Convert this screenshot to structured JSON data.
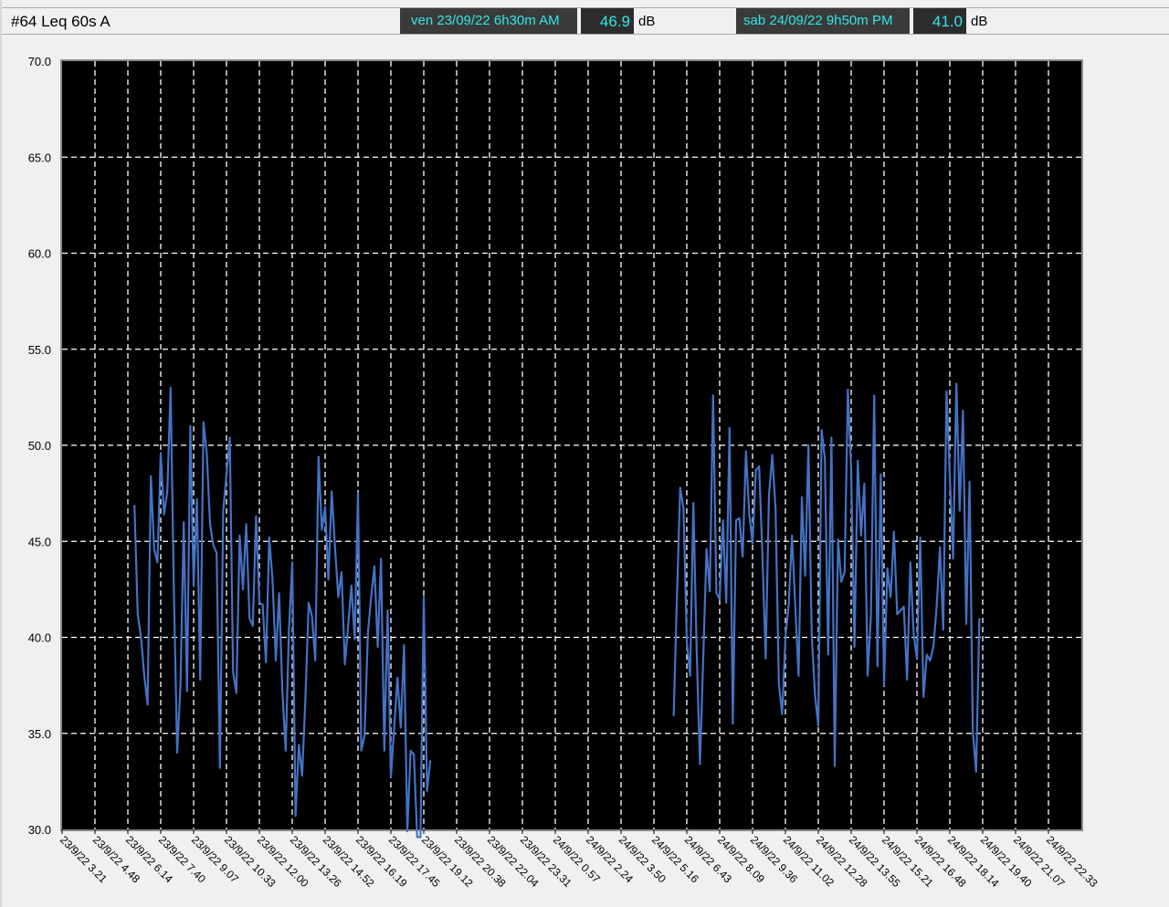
{
  "header": {
    "title": "#64 Leq 60s A",
    "cursor1": {
      "time": "ven 23/09/22 6h30m AM",
      "value": "46.9",
      "unit": "dB"
    },
    "cursor2": {
      "time": "sab 24/09/22 9h50m PM",
      "value": "41.0",
      "unit": "dB"
    }
  },
  "colors": {
    "plot_bg": "#000000",
    "line": "#4472c4",
    "grid": "#ffffff",
    "cursor_text": "#33e6e6",
    "window_bg": "#f0f0f0"
  },
  "chart_data": {
    "type": "line",
    "title": "",
    "xlabel": "",
    "ylabel": "",
    "ylim": [
      30,
      70
    ],
    "yticks": [
      "70.0",
      "65.0",
      "60.0",
      "55.0",
      "50.0",
      "45.0",
      "40.0",
      "35.0",
      "30.0"
    ],
    "ytick_values": [
      70,
      65,
      60,
      55,
      50,
      45,
      40,
      35,
      30
    ],
    "xticks": [
      "23/9/22 3.21",
      "23/9/22 4.48",
      "23/9/22 6.14",
      "23/9/22 7.40",
      "23/9/22 9.07",
      "23/9/22 10.33",
      "23/9/22 12.00",
      "23/9/22 13.26",
      "23/9/22 14.52",
      "23/9/22 16.19",
      "23/9/22 17.45",
      "23/9/22 19.12",
      "23/9/22 20.38",
      "23/9/22 22.04",
      "23/9/22 23.31",
      "24/9/22 0.57",
      "24/9/22 2.24",
      "24/9/22 3.50",
      "24/9/22 5.16",
      "24/9/22 6.43",
      "24/9/22 8.09",
      "24/9/22 9.36",
      "24/9/22 11.02",
      "24/9/22 12.28",
      "24/9/22 13.55",
      "24/9/22 15.21",
      "24/9/22 16.48",
      "24/9/22 18.14",
      "24/9/22 19.40",
      "24/9/22 21.07",
      "24/9/22 22.33"
    ],
    "grid": true,
    "legend": "none",
    "series": [
      {
        "segments": [
          [
            46.9,
            41.2,
            40.0,
            38.0,
            36.5,
            48.4,
            44.6,
            43.9,
            49.6,
            46.4,
            47.6,
            53.0,
            42.4,
            34.0,
            37.5,
            46.0,
            37.2,
            51.0,
            42.7,
            47.2,
            37.8,
            51.2,
            49.6,
            45.9,
            44.8,
            44.4,
            33.2,
            46.6,
            48.5,
            50.4,
            38.2,
            37.1,
            45.3,
            42.5,
            45.9,
            41.0,
            40.6,
            46.3,
            41.8,
            41.7,
            38.7,
            45.2,
            43.0,
            38.8,
            42.3,
            37.2,
            34.1,
            40.4,
            43.9,
            30.7,
            34.4,
            32.8,
            36.8,
            41.8,
            41.1,
            38.8,
            49.4,
            45.6,
            46.8,
            43.0,
            47.6,
            44.7,
            42.1,
            43.4,
            38.6,
            40.6,
            42.7,
            39.9,
            47.5,
            34.1,
            34.9,
            40.2,
            42.1,
            43.7,
            39.5,
            44.1,
            34.1,
            41.4,
            32.7,
            35.3,
            37.9,
            35.3,
            39.6,
            29.9,
            34.1,
            33.9,
            29.6,
            29.6,
            42.1,
            32.0,
            33.6
          ],
          [
            35.9,
            42.1,
            47.8,
            46.7,
            39.8,
            38.0,
            47.0,
            39.4,
            33.4,
            38.9,
            44.6,
            42.4,
            52.6,
            42.3,
            42.0,
            46.1,
            41.8,
            50.9,
            35.5,
            46.1,
            46.2,
            44.2,
            49.7,
            46.4,
            44.9,
            48.7,
            48.9,
            44.3,
            38.9,
            47.4,
            49.5,
            46.7,
            37.6,
            36.0,
            40.0,
            41.7,
            45.3,
            41.6,
            38.0,
            47.3,
            43.2,
            50.0,
            40.1,
            37.0,
            35.4,
            50.8,
            49.3,
            39.1,
            50.4,
            33.3,
            45.1,
            42.9,
            43.4,
            52.9,
            48.7,
            39.5,
            49.2,
            45.3,
            48.0,
            38.0,
            41.1,
            52.6,
            38.5,
            48.5,
            37.5,
            43.6,
            42.1,
            45.5,
            41.2,
            41.4,
            41.6,
            37.8,
            43.9,
            40.2,
            38.9,
            45.2,
            36.9,
            39.1,
            38.8,
            39.5,
            41.6,
            44.7,
            40.4,
            52.8,
            48.4,
            44.1,
            53.2,
            46.6,
            51.8,
            40.7,
            48.1,
            35.1,
            33.0,
            41.0
          ]
        ]
      }
    ]
  }
}
